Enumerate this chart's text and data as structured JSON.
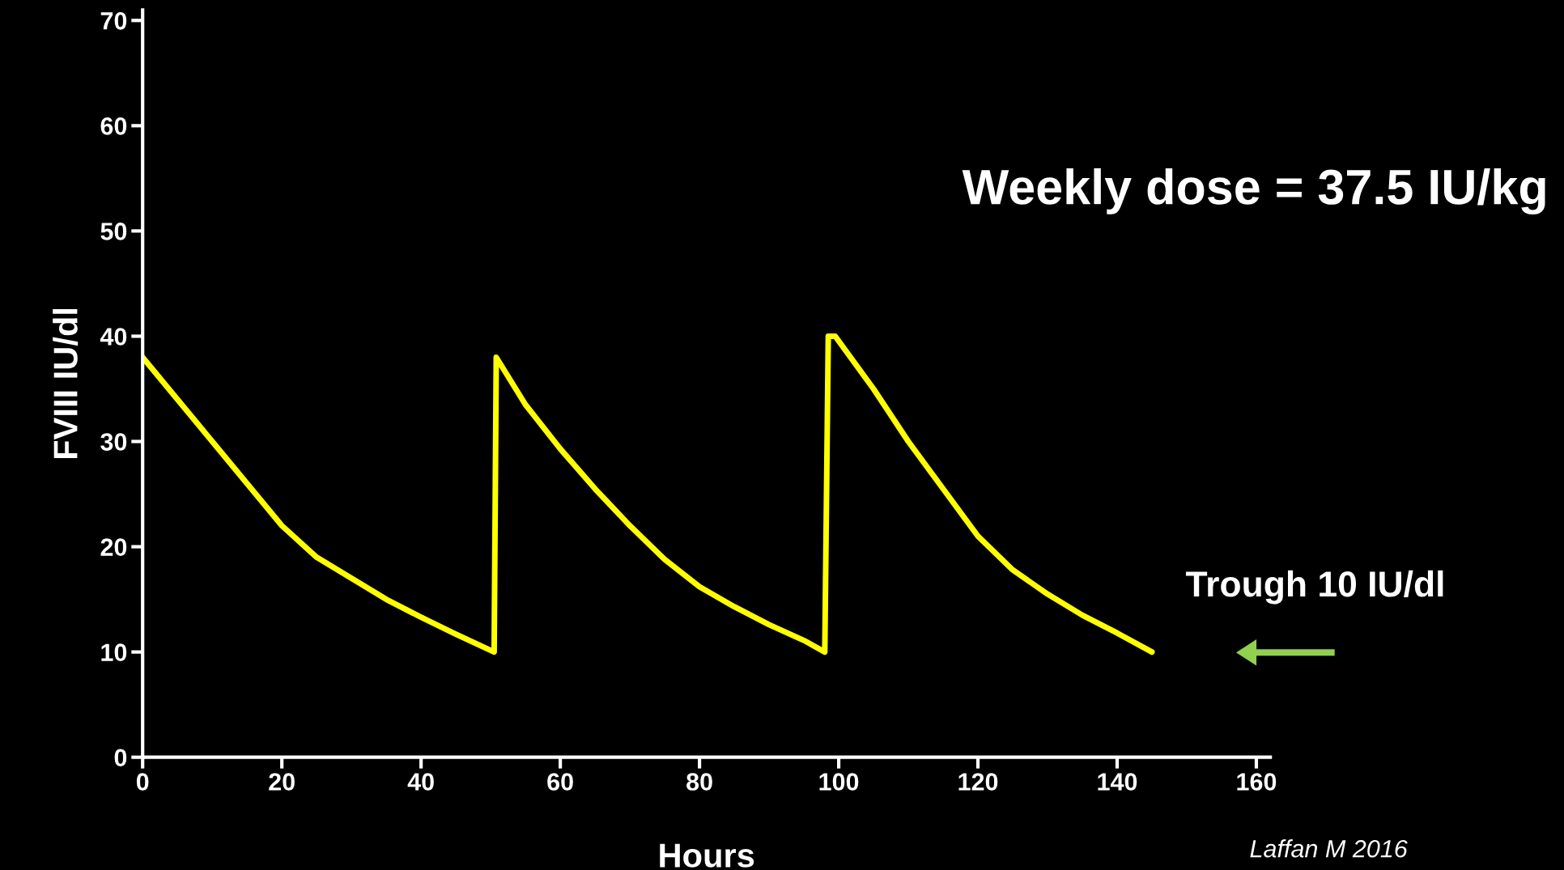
{
  "chart_data": {
    "type": "line",
    "xlabel": "Hours",
    "ylabel": "FVIII IU/dl",
    "series": [
      {
        "color": "#ffff00",
        "x": [
          0,
          5,
          10,
          15,
          20,
          25,
          30,
          35,
          40,
          45,
          50.5,
          50.8,
          55,
          60,
          65,
          70,
          75,
          80,
          85,
          90,
          95,
          98,
          98.5,
          99.5,
          105,
          110,
          115,
          120,
          125,
          130,
          135,
          140,
          145
        ],
        "values": [
          38,
          34,
          30,
          26,
          22,
          19,
          17,
          15,
          13.3,
          11.7,
          10,
          38,
          33.5,
          29.3,
          25.5,
          22,
          18.8,
          16.2,
          14.3,
          12.6,
          11.1,
          10,
          40,
          40,
          35,
          30,
          25.5,
          21,
          17.8,
          15.5,
          13.5,
          11.8,
          10
        ]
      }
    ],
    "xlim": [
      0,
      162
    ],
    "xticks": [
      0,
      20,
      40,
      60,
      80,
      100,
      120,
      140,
      160
    ],
    "ylim": [
      0,
      71
    ],
    "yticks": [
      0,
      10,
      20,
      30,
      40,
      50,
      60,
      70
    ],
    "grid": false,
    "legend": false,
    "marker": "none",
    "line_style": "solid",
    "annotations": [
      "Weekly dose = 37.5 IU/kg",
      "Trough 10 IU/dl",
      "Laffan M 2016"
    ]
  }
}
